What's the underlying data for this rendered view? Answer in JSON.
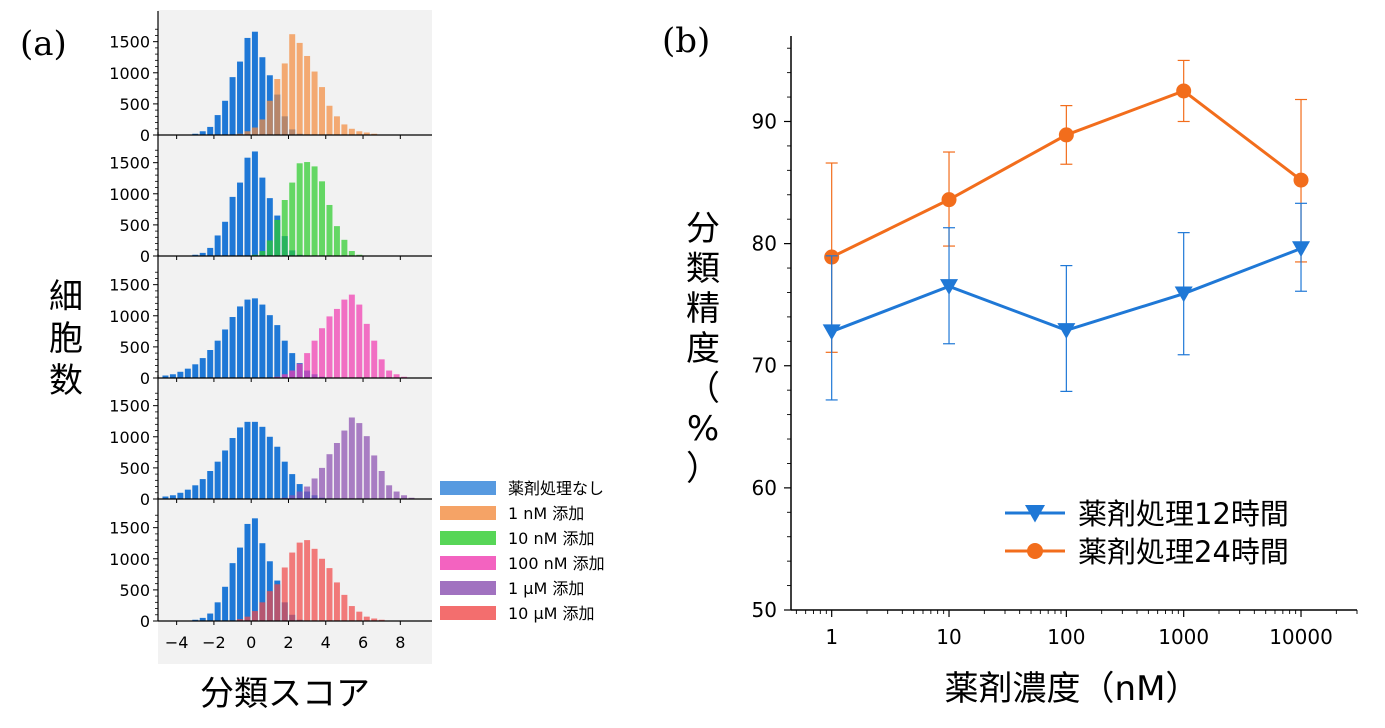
{
  "panel_a_label": "(a)",
  "panel_b_label": "(b)",
  "chart_data": [
    {
      "type": "bar",
      "panel": "(a)",
      "xlabel": "分類スコア",
      "ylabel": "細胞数",
      "xlim": [
        -5,
        9.7
      ],
      "ylim": [
        0,
        1800
      ],
      "xticks": [
        -4,
        -2,
        0,
        2,
        4,
        6,
        8
      ],
      "yticks": [
        0,
        500,
        1000,
        1500
      ],
      "bin_width": 0.4,
      "bin_centers": [
        -4.6,
        -4.2,
        -3.8,
        -3.4,
        -3.0,
        -2.6,
        -2.2,
        -1.8,
        -1.4,
        -1.0,
        -0.6,
        -0.2,
        0.2,
        0.6,
        1.0,
        1.4,
        1.8,
        2.2,
        2.6,
        3.0,
        3.4,
        3.8,
        4.2,
        4.6,
        5.0,
        5.4,
        5.8,
        6.2,
        6.6,
        7.0,
        7.4,
        7.8,
        8.2,
        8.6,
        9.0
      ],
      "legend": [
        "薬剤処理なし",
        "1 nM 添加",
        "10 nM 添加",
        "100 nM 添加",
        "1 μM 添加",
        "10 μM 添加"
      ],
      "colors": {
        "control": "#1f78d6",
        "treated": [
          "#f28c40",
          "#2dcc2d",
          "#f03cb0",
          "#8a4fb0",
          "#f04a4a"
        ]
      },
      "subplots": [
        {
          "treated_label": "1 nM 添加",
          "control": [
            0,
            0,
            0,
            0,
            20,
            60,
            130,
            320,
            550,
            930,
            1180,
            1560,
            1660,
            1250,
            960,
            650,
            300,
            90,
            20,
            0,
            0,
            0,
            0,
            0,
            0,
            0,
            0,
            0,
            0,
            0,
            0,
            0,
            0,
            0,
            0
          ],
          "treated": [
            0,
            0,
            0,
            0,
            0,
            0,
            0,
            0,
            0,
            0,
            20,
            60,
            120,
            250,
            550,
            900,
            1150,
            1620,
            1480,
            1270,
            1020,
            770,
            470,
            300,
            170,
            100,
            60,
            40,
            20,
            0,
            0,
            0,
            0,
            0,
            0
          ]
        },
        {
          "treated_label": "10 nM 添加",
          "control": [
            0,
            0,
            0,
            0,
            20,
            50,
            130,
            330,
            550,
            950,
            1180,
            1580,
            1680,
            1260,
            930,
            650,
            320,
            90,
            20,
            0,
            0,
            0,
            0,
            0,
            0,
            0,
            0,
            0,
            0,
            0,
            0,
            0,
            0,
            0,
            0
          ],
          "treated": [
            0,
            0,
            0,
            0,
            0,
            0,
            0,
            0,
            0,
            0,
            0,
            0,
            20,
            80,
            250,
            580,
            900,
            1180,
            1490,
            1510,
            1440,
            1200,
            820,
            480,
            260,
            80,
            20,
            0,
            0,
            0,
            0,
            0,
            0,
            0,
            0
          ]
        },
        {
          "treated_label": "100 nM 添加",
          "control": [
            40,
            60,
            100,
            150,
            220,
            320,
            450,
            600,
            780,
            980,
            1150,
            1260,
            1280,
            1180,
            1010,
            850,
            600,
            400,
            240,
            120,
            60,
            20,
            0,
            0,
            0,
            0,
            0,
            0,
            0,
            0,
            0,
            0,
            0,
            0,
            0
          ],
          "treated": [
            0,
            0,
            0,
            0,
            0,
            0,
            0,
            0,
            0,
            0,
            0,
            0,
            0,
            0,
            0,
            20,
            60,
            120,
            230,
            400,
            600,
            800,
            990,
            1110,
            1260,
            1340,
            1180,
            870,
            600,
            300,
            120,
            60,
            20,
            0,
            0
          ]
        },
        {
          "treated_label": "1 μM 添加",
          "control": [
            40,
            60,
            100,
            150,
            220,
            320,
            450,
            600,
            780,
            980,
            1150,
            1240,
            1240,
            1160,
            1000,
            840,
            600,
            400,
            240,
            120,
            60,
            20,
            0,
            0,
            0,
            0,
            0,
            0,
            0,
            0,
            0,
            0,
            0,
            0,
            0
          ],
          "treated": [
            0,
            0,
            0,
            0,
            0,
            0,
            0,
            0,
            0,
            0,
            0,
            0,
            0,
            0,
            0,
            0,
            20,
            60,
            120,
            200,
            330,
            500,
            720,
            900,
            1100,
            1310,
            1220,
            1010,
            700,
            450,
            220,
            120,
            60,
            20,
            0
          ]
        },
        {
          "treated_label": "10 μM 添加",
          "control": [
            0,
            0,
            0,
            0,
            20,
            50,
            120,
            300,
            550,
            930,
            1180,
            1560,
            1650,
            1250,
            960,
            650,
            300,
            100,
            20,
            0,
            0,
            0,
            0,
            0,
            0,
            0,
            0,
            0,
            0,
            0,
            0,
            0,
            0,
            0,
            0
          ],
          "treated": [
            0,
            0,
            0,
            0,
            0,
            0,
            0,
            0,
            0,
            0,
            30,
            70,
            160,
            300,
            480,
            590,
            860,
            1100,
            1260,
            1300,
            1160,
            1000,
            850,
            620,
            420,
            240,
            150,
            70,
            40,
            20,
            0,
            0,
            0,
            0,
            0
          ]
        }
      ]
    },
    {
      "type": "line",
      "panel": "(b)",
      "xlabel": "薬剤濃度（nM）",
      "ylabel": "分類精度（%）",
      "xscale": "log",
      "xlim": [
        0.45,
        30000
      ],
      "ylim": [
        50,
        97
      ],
      "xticks": [
        1,
        10,
        100,
        1000,
        10000
      ],
      "xtick_labels": [
        "1",
        "10",
        "100",
        "1000",
        "10000"
      ],
      "yticks": [
        50,
        60,
        70,
        80,
        90
      ],
      "legend_position": "bottom-right",
      "x": [
        1,
        10,
        100,
        1000,
        10000
      ],
      "series": [
        {
          "name": "薬剤処理12時間",
          "color": "#1f78d6",
          "marker": "triangle-down",
          "values": [
            72.8,
            76.5,
            72.9,
            75.9,
            79.6
          ],
          "err_low": [
            67.2,
            71.8,
            67.9,
            70.9,
            76.1
          ],
          "err_high": [
            79.0,
            81.3,
            78.2,
            80.9,
            83.3
          ]
        },
        {
          "name": "薬剤処理24時間",
          "color": "#f26d1c",
          "marker": "circle",
          "values": [
            78.9,
            83.6,
            88.9,
            92.5,
            85.2
          ],
          "err_low": [
            71.1,
            79.8,
            86.5,
            90.0,
            78.5
          ],
          "err_high": [
            86.6,
            87.5,
            91.3,
            95.0,
            91.8
          ]
        }
      ]
    }
  ]
}
